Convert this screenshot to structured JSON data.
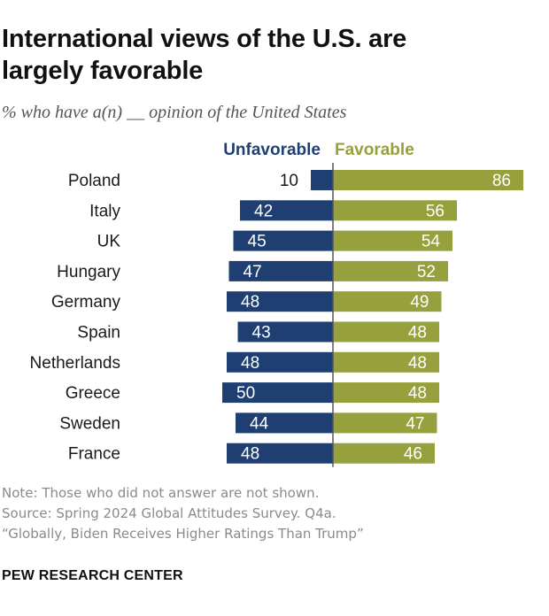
{
  "title_line1": "International views of the U.S. are",
  "title_line2": "largely favorable",
  "subtitle": "% who have a(n) __ opinion of the United States",
  "colors": {
    "unfavorable": "#1f3f73",
    "favorable": "#96a03c",
    "axis": "#555555"
  },
  "chart_data": {
    "type": "bar",
    "orientation": "horizontal-diverging",
    "categories": [
      "Poland",
      "Italy",
      "UK",
      "Hungary",
      "Germany",
      "Spain",
      "Netherlands",
      "Greece",
      "Sweden",
      "France"
    ],
    "series": [
      {
        "name": "Unfavorable",
        "values": [
          10,
          42,
          45,
          47,
          48,
          43,
          48,
          50,
          44,
          48
        ]
      },
      {
        "name": "Favorable",
        "values": [
          86,
          56,
          54,
          52,
          49,
          48,
          48,
          48,
          47,
          46
        ]
      }
    ],
    "title": "International views of the U.S. are largely favorable",
    "xlabel": "",
    "ylabel": ""
  },
  "notes": [
    "Note: Those who did not answer are not shown.",
    "Source: Spring 2024 Global Attitudes Survey. Q4a.",
    "“Globally, Biden Receives Higher Ratings Than Trump”"
  ],
  "organization": "PEW RESEARCH CENTER"
}
